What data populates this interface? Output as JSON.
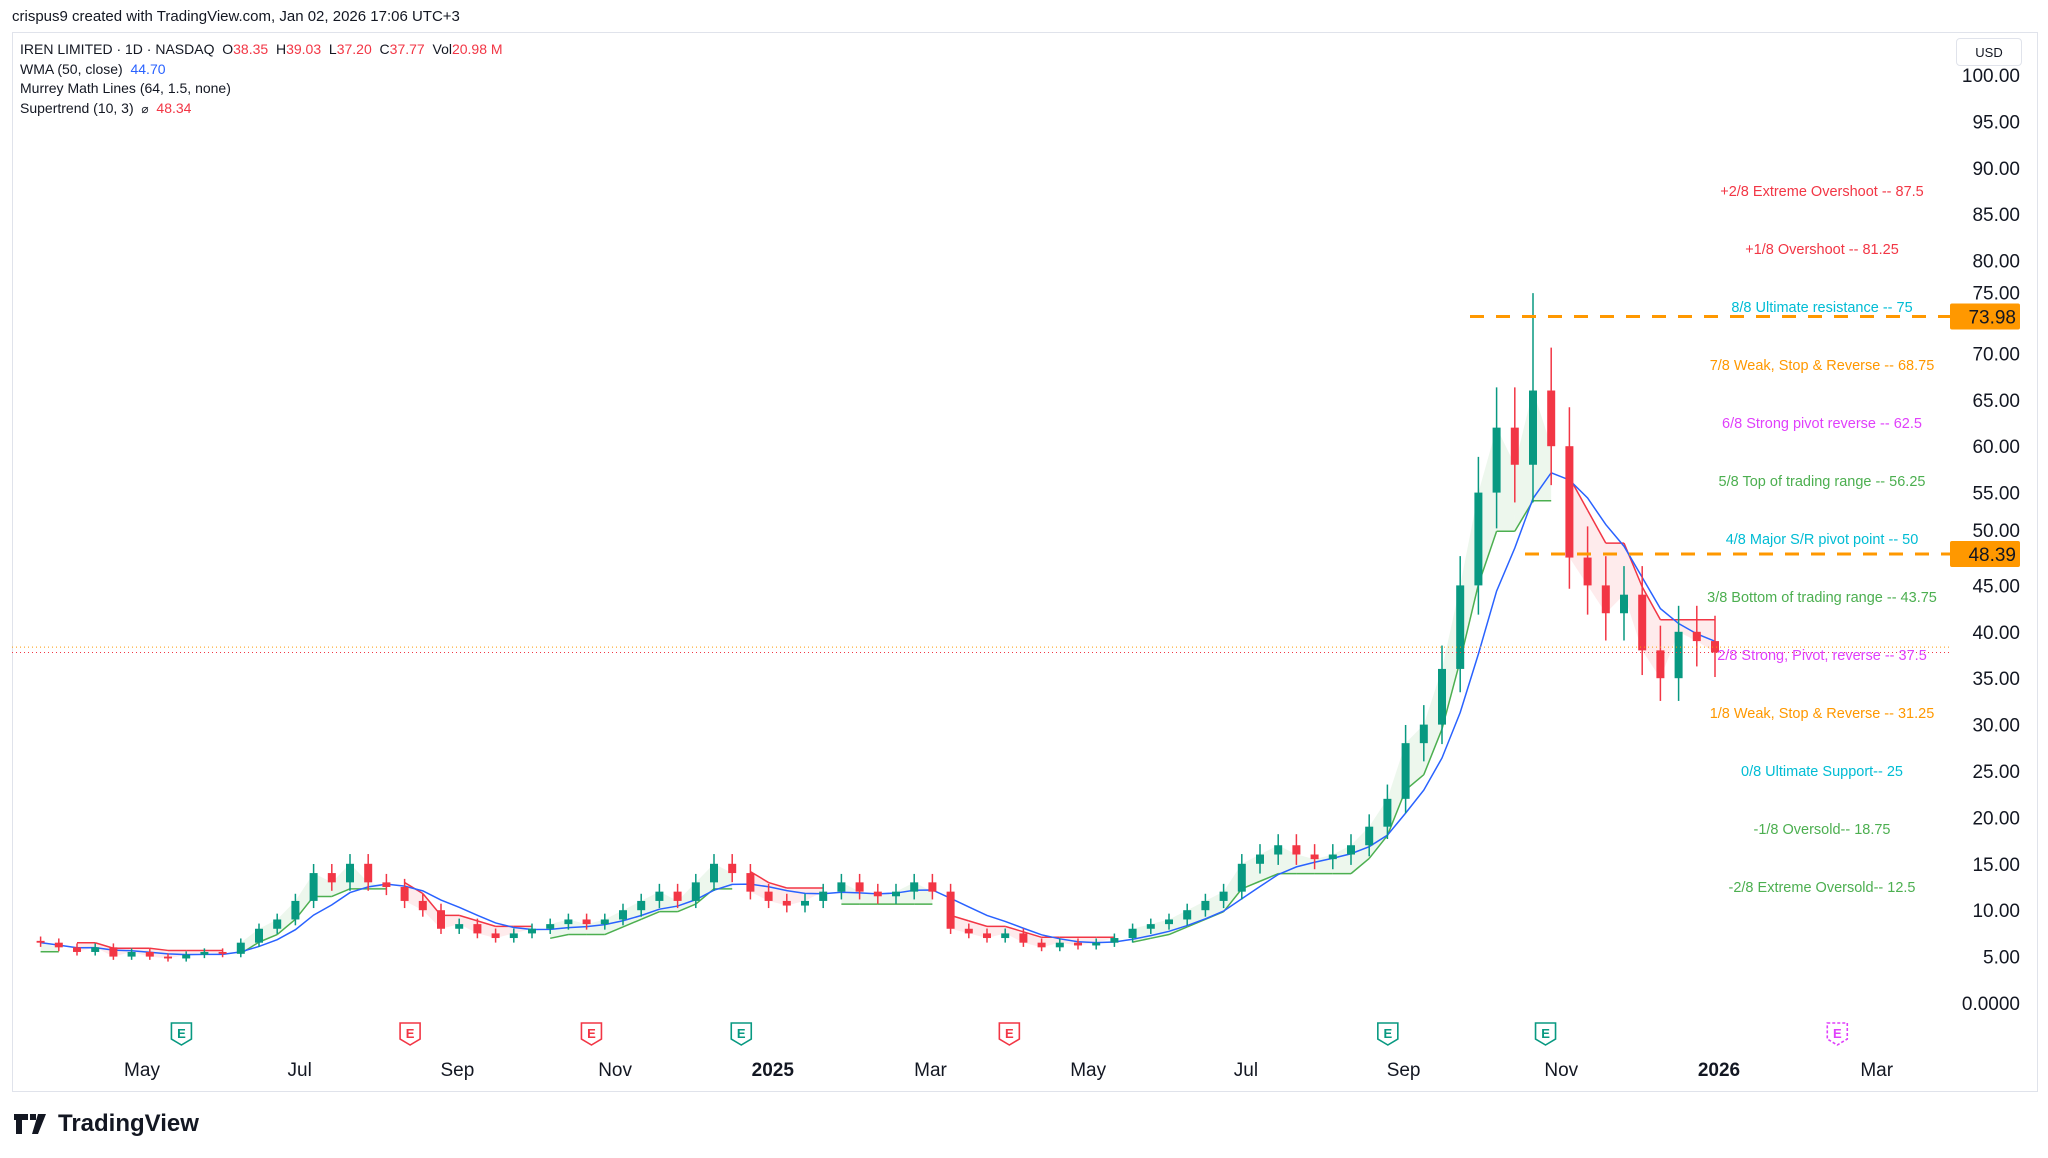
{
  "credit": "crispus9 created with TradingView.com, Jan 02, 2026 17:06 UTC+3",
  "legend": {
    "symbol": "IREN LIMITED · 1D · NASDAQ",
    "o_label": "O",
    "o": "38.35",
    "h_label": "H",
    "h": "39.03",
    "l_label": "L",
    "l": "37.20",
    "c_label": "C",
    "c": "37.77",
    "vol_label": "Vol",
    "vol": "20.98 M",
    "wma": "WMA (50, close)",
    "wma_value": "44.70",
    "murrey": "Murrey Math Lines (64, 1.5, none)",
    "supertrend": "Supertrend (10, 3)",
    "supertrend_sym": "⌀",
    "supertrend_value": "48.34"
  },
  "currency": "USD",
  "footer": {
    "logo_text": "TradingView"
  },
  "colors": {
    "up": "#089981",
    "down": "#f23645",
    "wma": "#2962ff",
    "orange": "#ff9800",
    "st_up": "#4caf50",
    "st_down": "#f23645"
  },
  "chart_data": {
    "type": "candlestick",
    "title": "IREN LIMITED · 1D · NASDAQ",
    "ylim": [
      0,
      100
    ],
    "y_ticks": [
      "100.00",
      "95.00",
      "90.00",
      "85.00",
      "80.00",
      "75.00",
      "70.00",
      "65.00",
      "60.00",
      "55.00",
      "50.00",
      "45.00",
      "40.00",
      "35.00",
      "30.00",
      "25.00",
      "20.00",
      "15.00",
      "10.00",
      "5.00",
      "0.0000"
    ],
    "x_ticks": [
      {
        "label": "May",
        "month": 0
      },
      {
        "label": "Jul",
        "month": 2
      },
      {
        "label": "Sep",
        "month": 4
      },
      {
        "label": "Nov",
        "month": 6
      },
      {
        "label": "2025",
        "month": 8,
        "bold": true
      },
      {
        "label": "Mar",
        "month": 10
      },
      {
        "label": "May",
        "month": 12
      },
      {
        "label": "Jul",
        "month": 14
      },
      {
        "label": "Sep",
        "month": 16
      },
      {
        "label": "Nov",
        "month": 18
      },
      {
        "label": "2026",
        "month": 20,
        "bold": true
      },
      {
        "label": "Mar",
        "month": 22
      }
    ],
    "weekly_closes": [
      6.5,
      6,
      5.5,
      6,
      5,
      5.5,
      5,
      4.8,
      5.2,
      5.5,
      5.3,
      6.5,
      8,
      9,
      11,
      14,
      13,
      15,
      13,
      12.5,
      11,
      10,
      8,
      8.5,
      7.5,
      7,
      7.5,
      8,
      8.5,
      9,
      8.5,
      9,
      10,
      11,
      12,
      11,
      13,
      15,
      14,
      12,
      11,
      10.5,
      11,
      12,
      13,
      12,
      11.5,
      12,
      13,
      12,
      8,
      7.5,
      7,
      7.5,
      6.5,
      6,
      6.5,
      6.2,
      6.5,
      7,
      8,
      8.5,
      9,
      10,
      11,
      12,
      15,
      16,
      17,
      16,
      15.5,
      16,
      17,
      19,
      22,
      28,
      30,
      36,
      45,
      55,
      62,
      58,
      66,
      60,
      48,
      45,
      42,
      44,
      38,
      35,
      40,
      39,
      37.77
    ],
    "peak_high": 76.5,
    "last_price": {
      "value": 37.77,
      "prev_close": 38.35
    },
    "price_markers": [
      {
        "label": "73.98",
        "value": 73.98
      },
      {
        "label": "48.39",
        "value": 48.39
      }
    ],
    "murrey_lines": [
      {
        "label": "+2/8 Extreme Overshoot --  87.5",
        "value": 87.5,
        "color": "#f23645"
      },
      {
        "label": "+1/8 Overshoot --  81.25",
        "value": 81.25,
        "color": "#f23645"
      },
      {
        "label": "8/8 Ultimate resistance --  75",
        "value": 75,
        "color": "#00bcd4"
      },
      {
        "label": "7/8 Weak, Stop & Reverse --  68.75",
        "value": 68.75,
        "color": "#ff9800"
      },
      {
        "label": "6/8 Strong pivot reverse --  62.5",
        "value": 62.5,
        "color": "#e040fb"
      },
      {
        "label": "5/8 Top of trading range --  56.25",
        "value": 56.25,
        "color": "#4caf50"
      },
      {
        "label": "4/8 Major S/R pivot point --  50",
        "value": 50,
        "color": "#00bcd4"
      },
      {
        "label": "3/8 Bottom of trading range --  43.75",
        "value": 43.75,
        "color": "#4caf50"
      },
      {
        "label": "2/8 Strong, Pivot, reverse --  37.5",
        "value": 37.5,
        "color": "#e040fb"
      },
      {
        "label": "1/8 Weak, Stop & Reverse --  31.25",
        "value": 31.25,
        "color": "#ff9800"
      },
      {
        "label": "0/8 Ultimate Support--  25",
        "value": 25,
        "color": "#00bcd4"
      },
      {
        "label": "-1/8 Oversold--  18.75",
        "value": 18.75,
        "color": "#4caf50"
      },
      {
        "label": "-2/8 Extreme Oversold--  12.5",
        "value": 12.5,
        "color": "#4caf50"
      }
    ],
    "earnings": [
      {
        "label": "E",
        "month": 0.5,
        "type": "beat"
      },
      {
        "label": "E",
        "month": 3.4,
        "type": "miss"
      },
      {
        "label": "E",
        "month": 5.7,
        "type": "miss"
      },
      {
        "label": "E",
        "month": 7.6,
        "type": "beat"
      },
      {
        "label": "E",
        "month": 11.0,
        "type": "miss"
      },
      {
        "label": "E",
        "month": 15.8,
        "type": "beat"
      },
      {
        "label": "E",
        "month": 17.8,
        "type": "beat"
      },
      {
        "label": "E",
        "month": 21.5,
        "type": "future"
      }
    ]
  }
}
